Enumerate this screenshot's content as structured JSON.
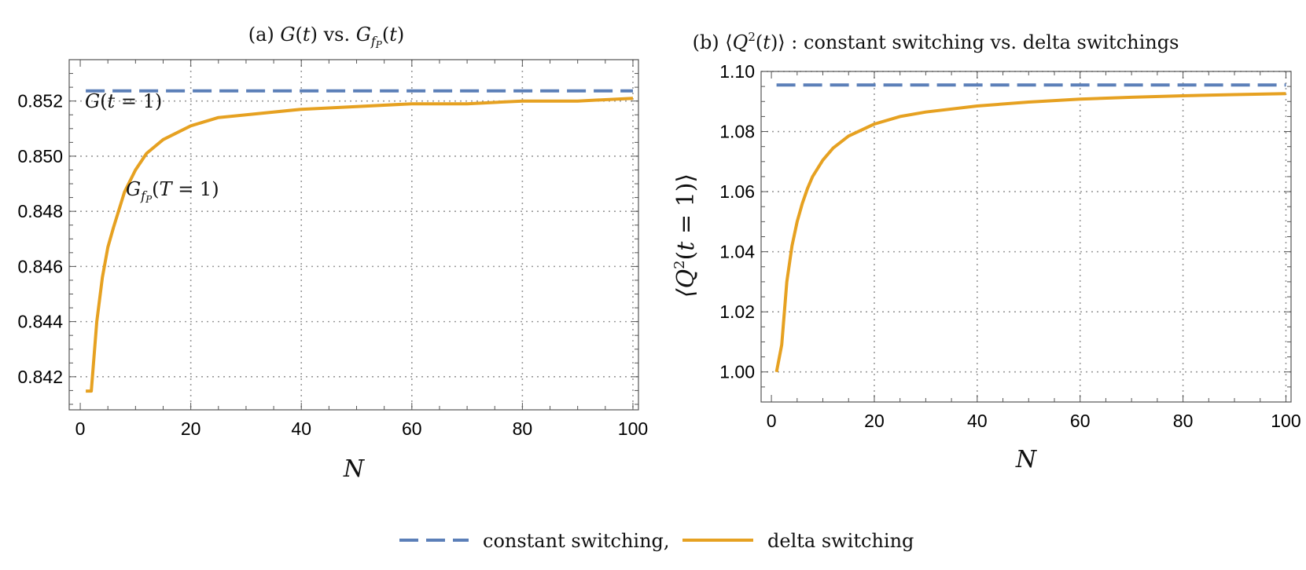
{
  "colors": {
    "constant": "#5b7fb8",
    "delta": "#e6a121"
  },
  "legend": {
    "constant_label": "constant switching,",
    "delta_label": "delta switching"
  },
  "chart_data": [
    {
      "type": "line",
      "title": "(a) G(t) vs. G_{f_P}(t)",
      "xlabel": "N",
      "ylabel": "",
      "xlim": [
        -2,
        101
      ],
      "ylim": [
        0.8408,
        0.8535
      ],
      "xticks": [
        0,
        20,
        40,
        60,
        80,
        100
      ],
      "yticks": [
        0.842,
        0.844,
        0.846,
        0.848,
        0.85,
        0.852
      ],
      "xtick_labels": [
        "0",
        "20",
        "40",
        "60",
        "80",
        "100"
      ],
      "ytick_labels": [
        "0.842",
        "0.844",
        "0.846",
        "0.848",
        "0.850",
        "0.852"
      ],
      "grid": true,
      "annotations": [
        {
          "text": "G(t = 1)"
        },
        {
          "text": "G_{f_P}(T = 1)"
        }
      ],
      "series": [
        {
          "name": "constant switching",
          "style": "dashed",
          "x": [
            1,
            100
          ],
          "y": [
            0.85237,
            0.85237
          ]
        },
        {
          "name": "delta switching",
          "style": "solid",
          "x": [
            1,
            2,
            3,
            4,
            5,
            6,
            8,
            10,
            12,
            15,
            20,
            25,
            30,
            40,
            50,
            60,
            70,
            80,
            90,
            100
          ],
          "y": [
            0.84148,
            0.84148,
            0.844,
            0.8456,
            0.8467,
            0.8474,
            0.8487,
            0.8495,
            0.8501,
            0.8506,
            0.8511,
            0.8514,
            0.8515,
            0.8517,
            0.8518,
            0.8519,
            0.8519,
            0.852,
            0.852,
            0.8521
          ]
        }
      ]
    },
    {
      "type": "line",
      "title": "(b) ⟨Q²(t)⟩ : constant switching vs. delta switchings",
      "xlabel": "N",
      "ylabel": "⟨Q²(t = 1)⟩",
      "xlim": [
        -2,
        101
      ],
      "ylim": [
        0.99,
        1.1
      ],
      "xticks": [
        0,
        20,
        40,
        60,
        80,
        100
      ],
      "yticks": [
        1.0,
        1.02,
        1.04,
        1.06,
        1.08,
        1.1
      ],
      "xtick_labels": [
        "0",
        "20",
        "40",
        "60",
        "80",
        "100"
      ],
      "ytick_labels": [
        "1.00",
        "1.02",
        "1.04",
        "1.06",
        "1.08",
        "1.10"
      ],
      "grid": true,
      "series": [
        {
          "name": "constant switching",
          "style": "dashed",
          "x": [
            1,
            100
          ],
          "y": [
            1.0955,
            1.0955
          ]
        },
        {
          "name": "delta switching",
          "style": "solid",
          "x": [
            1,
            2,
            3,
            4,
            5,
            6,
            7,
            8,
            10,
            12,
            15,
            20,
            25,
            30,
            40,
            50,
            60,
            70,
            80,
            90,
            100
          ],
          "y": [
            1.0,
            1.009,
            1.03,
            1.042,
            1.05,
            1.056,
            1.061,
            1.065,
            1.0705,
            1.0745,
            1.0785,
            1.0825,
            1.085,
            1.0865,
            1.0885,
            1.0898,
            1.0908,
            1.0914,
            1.0919,
            1.0923,
            1.0926
          ]
        }
      ]
    }
  ]
}
